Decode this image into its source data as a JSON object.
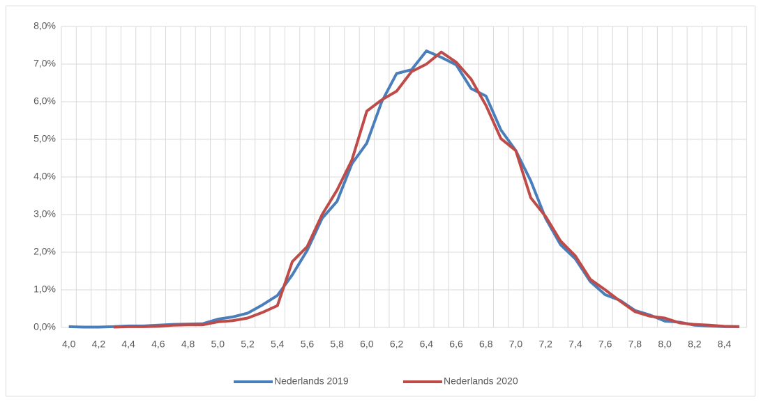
{
  "chart_data": {
    "type": "line",
    "categories": [
      "4,0",
      null,
      "4,2",
      null,
      "4,4",
      null,
      "4,6",
      null,
      "4,8",
      null,
      "5,0",
      null,
      "5,2",
      null,
      "5,4",
      null,
      "5,6",
      null,
      "5,8",
      null,
      "6,0",
      null,
      "6,2",
      null,
      "6,4",
      null,
      "6,6",
      null,
      "6,8",
      null,
      "7,0",
      null,
      "7,2",
      null,
      "7,4",
      null,
      "7,6",
      null,
      "7,8",
      null,
      "8,0",
      null,
      "8,2",
      null,
      "8,4",
      null
    ],
    "series": [
      {
        "name": "Nederlands 2019",
        "color": "#4a7ebb",
        "values": [
          0.02,
          0.01,
          0.01,
          0.02,
          0.04,
          0.04,
          0.06,
          0.08,
          0.09,
          0.1,
          0.22,
          0.28,
          0.38,
          0.6,
          0.85,
          1.4,
          2.05,
          2.9,
          3.35,
          4.35,
          4.9,
          6.0,
          6.75,
          6.85,
          7.35,
          7.18,
          6.98,
          6.35,
          6.15,
          5.25,
          4.7,
          3.9,
          2.9,
          2.2,
          1.82,
          1.22,
          0.87,
          0.72,
          0.45,
          0.33,
          0.17,
          0.14,
          0.06,
          0.04,
          0.02,
          0.02
        ]
      },
      {
        "name": "Nederlands 2020",
        "color": "#be4b48",
        "values": [
          null,
          null,
          null,
          0.01,
          0.02,
          0.02,
          0.03,
          0.06,
          0.07,
          0.07,
          0.15,
          0.18,
          0.25,
          0.4,
          0.58,
          1.75,
          2.15,
          3.0,
          3.65,
          4.45,
          5.75,
          6.05,
          6.28,
          6.8,
          7.0,
          7.32,
          7.05,
          6.6,
          5.9,
          5.02,
          4.7,
          3.45,
          2.95,
          2.3,
          1.9,
          1.28,
          1.0,
          0.7,
          0.42,
          0.3,
          0.25,
          0.12,
          0.08,
          0.06,
          0.03,
          0.02
        ]
      }
    ],
    "ylim": [
      0,
      8
    ],
    "yticks": [
      {
        "value": 0,
        "label": "0,0%"
      },
      {
        "value": 1,
        "label": "1,0%"
      },
      {
        "value": 2,
        "label": "2,0%"
      },
      {
        "value": 3,
        "label": "3,0%"
      },
      {
        "value": 4,
        "label": "4,0%"
      },
      {
        "value": 5,
        "label": "5,0%"
      },
      {
        "value": 6,
        "label": "6,0%"
      },
      {
        "value": 7,
        "label": "7,0%"
      },
      {
        "value": 8,
        "label": "8,0%"
      }
    ],
    "grid": true,
    "legend": "bottom"
  }
}
